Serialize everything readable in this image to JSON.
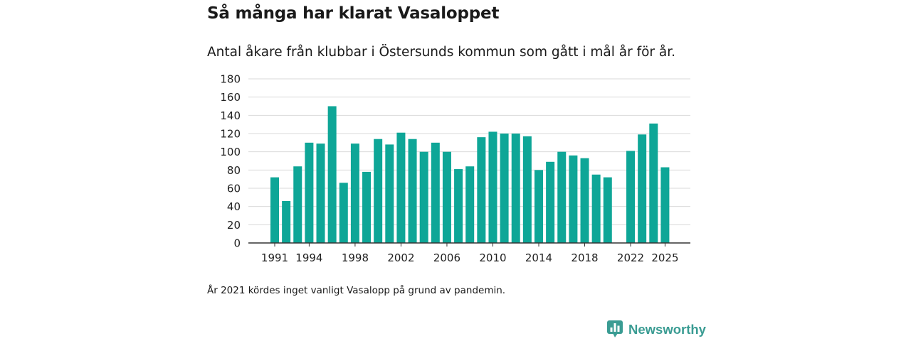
{
  "brand": {
    "name": "Newsworthy",
    "logo_icon": "bar-chart-speech-bubble-icon",
    "color": "#3a9c93"
  },
  "chart_data": {
    "type": "bar",
    "title": "Så många har klarat Vasaloppet",
    "subtitle": "Antal åkare från klubbar i Östersunds kommun som gått i mål år för år.",
    "footnote": "År 2021 kördes inget vanligt Vasalopp på grund av pandemin.",
    "xlabel": "",
    "ylabel": "",
    "ylim": [
      0,
      180
    ],
    "yticks": [
      "0",
      "20",
      "40",
      "60",
      "80",
      "100",
      "120",
      "140",
      "160",
      "180"
    ],
    "xticks": [
      "1991",
      "1994",
      "1998",
      "2002",
      "2006",
      "2010",
      "2014",
      "2018",
      "2022",
      "2025"
    ],
    "grid": true,
    "bar_color": "#0ea697",
    "categories": [
      "1991",
      "1992",
      "1993",
      "1994",
      "1995",
      "1996",
      "1997",
      "1998",
      "1999",
      "2000",
      "2001",
      "2002",
      "2003",
      "2004",
      "2005",
      "2006",
      "2007",
      "2008",
      "2009",
      "2010",
      "2011",
      "2012",
      "2013",
      "2014",
      "2015",
      "2016",
      "2017",
      "2018",
      "2019",
      "2020",
      "2021",
      "2022",
      "2023",
      "2024",
      "2025"
    ],
    "values": [
      72,
      46,
      84,
      110,
      109,
      150,
      66,
      109,
      78,
      114,
      108,
      121,
      114,
      100,
      110,
      100,
      81,
      84,
      116,
      122,
      120,
      120,
      117,
      80,
      89,
      100,
      96,
      93,
      75,
      72,
      null,
      101,
      119,
      131,
      83
    ]
  }
}
